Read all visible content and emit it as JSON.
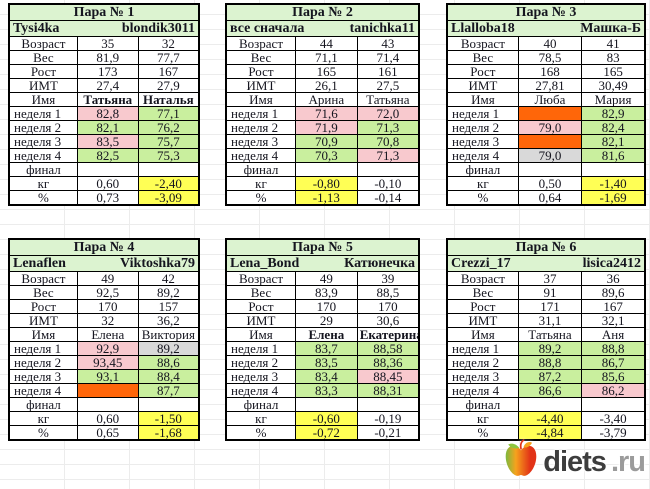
{
  "row_labels": [
    "Возраст",
    "Вес",
    "Рост",
    "ИМТ",
    "Имя",
    "неделя 1",
    "неделя 2",
    "неделя 3",
    "неделя 4",
    "финал",
    "кг",
    "%"
  ],
  "colors": {
    "white": "#ffffff",
    "pink": "#f8c9ce",
    "green": "#c9ef9e",
    "orange": "#ff6609",
    "gray": "#d9d9d9",
    "yellow": "#ffff55",
    "header": "#dcf3d0"
  },
  "pairs": [
    {
      "title": "Пара № 1",
      "user_left": "Tysi4ka",
      "user_right": "blondik3011",
      "values": [
        [
          {
            "v": "35"
          },
          {
            "v": "32"
          }
        ],
        [
          {
            "v": "81,9"
          },
          {
            "v": "77,7"
          }
        ],
        [
          {
            "v": "173"
          },
          {
            "v": "167"
          }
        ],
        [
          {
            "v": "27,4"
          },
          {
            "v": "27,9"
          }
        ],
        [
          {
            "v": "Татьяна",
            "bold": true
          },
          {
            "v": "Наталья",
            "bold": true
          }
        ],
        [
          {
            "v": "82,8",
            "bg": "pink"
          },
          {
            "v": "77,1",
            "bg": "green"
          }
        ],
        [
          {
            "v": "82,1",
            "bg": "green"
          },
          {
            "v": "76,2",
            "bg": "green"
          }
        ],
        [
          {
            "v": "83,5",
            "bg": "pink"
          },
          {
            "v": "75,7",
            "bg": "green"
          }
        ],
        [
          {
            "v": "82,5",
            "bg": "green"
          },
          {
            "v": "75,3",
            "bg": "green"
          }
        ],
        [
          {
            "v": ""
          },
          {
            "v": ""
          }
        ],
        [
          {
            "v": "0,60"
          },
          {
            "v": "-2,40",
            "bg": "yellow"
          }
        ],
        [
          {
            "v": "0,73"
          },
          {
            "v": "-3,09",
            "bg": "yellow"
          }
        ]
      ]
    },
    {
      "title": "Пара № 2",
      "user_left": "все сначала",
      "user_right": "tanichka11",
      "values": [
        [
          {
            "v": "44"
          },
          {
            "v": "43"
          }
        ],
        [
          {
            "v": "71,1"
          },
          {
            "v": "71,4"
          }
        ],
        [
          {
            "v": "165"
          },
          {
            "v": "161"
          }
        ],
        [
          {
            "v": "26,1"
          },
          {
            "v": "27,5"
          }
        ],
        [
          {
            "v": "Арина"
          },
          {
            "v": "Татьяна"
          }
        ],
        [
          {
            "v": "71,6",
            "bg": "pink"
          },
          {
            "v": "72,0",
            "bg": "pink"
          }
        ],
        [
          {
            "v": "71,9",
            "bg": "pink"
          },
          {
            "v": "71,3",
            "bg": "green"
          }
        ],
        [
          {
            "v": "70,9",
            "bg": "green"
          },
          {
            "v": "70,8",
            "bg": "green"
          }
        ],
        [
          {
            "v": "70,3",
            "bg": "green"
          },
          {
            "v": "71,3",
            "bg": "pink"
          }
        ],
        [
          {
            "v": ""
          },
          {
            "v": ""
          }
        ],
        [
          {
            "v": "-0,80",
            "bg": "yellow"
          },
          {
            "v": "-0,10"
          }
        ],
        [
          {
            "v": "-1,13",
            "bg": "yellow"
          },
          {
            "v": "-0,14"
          }
        ]
      ]
    },
    {
      "title": "Пара № 3",
      "user_left": "Llalloba18",
      "user_right": "Машка-Б",
      "values": [
        [
          {
            "v": "40"
          },
          {
            "v": "41"
          }
        ],
        [
          {
            "v": "78,5"
          },
          {
            "v": "83"
          }
        ],
        [
          {
            "v": "168"
          },
          {
            "v": "165"
          }
        ],
        [
          {
            "v": "27,81"
          },
          {
            "v": "30,49"
          }
        ],
        [
          {
            "v": "Люба"
          },
          {
            "v": "Мария"
          }
        ],
        [
          {
            "v": "",
            "bg": "orange"
          },
          {
            "v": "82,9",
            "bg": "green"
          }
        ],
        [
          {
            "v": "79,0",
            "bg": "pink"
          },
          {
            "v": "82,4",
            "bg": "green"
          }
        ],
        [
          {
            "v": "",
            "bg": "orange"
          },
          {
            "v": "82,1",
            "bg": "green"
          }
        ],
        [
          {
            "v": "79,0",
            "bg": "gray"
          },
          {
            "v": "81,6",
            "bg": "green"
          }
        ],
        [
          {
            "v": ""
          },
          {
            "v": ""
          }
        ],
        [
          {
            "v": "0,50"
          },
          {
            "v": "-1,40",
            "bg": "yellow"
          }
        ],
        [
          {
            "v": "0,64"
          },
          {
            "v": "-1,69",
            "bg": "yellow"
          }
        ]
      ]
    },
    {
      "title": "Пара № 4",
      "user_left": "Lenaflen",
      "user_right": "Viktoshka79",
      "values": [
        [
          {
            "v": "49"
          },
          {
            "v": "42"
          }
        ],
        [
          {
            "v": "92,5"
          },
          {
            "v": "89,2"
          }
        ],
        [
          {
            "v": "170"
          },
          {
            "v": "157"
          }
        ],
        [
          {
            "v": "32"
          },
          {
            "v": "36,2"
          }
        ],
        [
          {
            "v": "Елена"
          },
          {
            "v": "Виктория"
          }
        ],
        [
          {
            "v": "92,9",
            "bg": "pink"
          },
          {
            "v": "89,2",
            "bg": "gray"
          }
        ],
        [
          {
            "v": "93,45",
            "bg": "pink"
          },
          {
            "v": "88,6",
            "bg": "green"
          }
        ],
        [
          {
            "v": "93,1",
            "bg": "green"
          },
          {
            "v": "88,4",
            "bg": "green"
          }
        ],
        [
          {
            "v": "",
            "bg": "orange"
          },
          {
            "v": "87,7",
            "bg": "green"
          }
        ],
        [
          {
            "v": ""
          },
          {
            "v": ""
          }
        ],
        [
          {
            "v": "0,60"
          },
          {
            "v": "-1,50",
            "bg": "yellow"
          }
        ],
        [
          {
            "v": "0,65"
          },
          {
            "v": "-1,68",
            "bg": "yellow"
          }
        ]
      ]
    },
    {
      "title": "Пара № 5",
      "user_left": "Lena_Bond",
      "user_right": "Катюнечка",
      "values": [
        [
          {
            "v": "49"
          },
          {
            "v": "39"
          }
        ],
        [
          {
            "v": "83,9"
          },
          {
            "v": "88,5"
          }
        ],
        [
          {
            "v": "170"
          },
          {
            "v": "170"
          }
        ],
        [
          {
            "v": "29"
          },
          {
            "v": "30,6"
          }
        ],
        [
          {
            "v": "Елена",
            "bold": true
          },
          {
            "v": "Екатерина",
            "bold": true
          }
        ],
        [
          {
            "v": "83,7",
            "bg": "green"
          },
          {
            "v": "88,58",
            "bg": "green"
          }
        ],
        [
          {
            "v": "83,5",
            "bg": "green"
          },
          {
            "v": "88,36",
            "bg": "green"
          }
        ],
        [
          {
            "v": "83,4",
            "bg": "green"
          },
          {
            "v": "88,45",
            "bg": "pink"
          }
        ],
        [
          {
            "v": "83,3",
            "bg": "green"
          },
          {
            "v": "88,31",
            "bg": "green"
          }
        ],
        [
          {
            "v": ""
          },
          {
            "v": ""
          }
        ],
        [
          {
            "v": "-0,60",
            "bg": "yellow"
          },
          {
            "v": "-0,19"
          }
        ],
        [
          {
            "v": "-0,72",
            "bg": "yellow"
          },
          {
            "v": "-0,21"
          }
        ]
      ]
    },
    {
      "title": "Пара № 6",
      "user_left": "Crezzi_17",
      "user_right": "lisica2412",
      "values": [
        [
          {
            "v": "37"
          },
          {
            "v": "36"
          }
        ],
        [
          {
            "v": "91"
          },
          {
            "v": "89,6"
          }
        ],
        [
          {
            "v": "171"
          },
          {
            "v": "167"
          }
        ],
        [
          {
            "v": "31,1"
          },
          {
            "v": "32,1"
          }
        ],
        [
          {
            "v": "Татьяна"
          },
          {
            "v": "Аня"
          }
        ],
        [
          {
            "v": "89,2",
            "bg": "green"
          },
          {
            "v": "88,8",
            "bg": "green"
          }
        ],
        [
          {
            "v": "88,8",
            "bg": "green"
          },
          {
            "v": "86,7",
            "bg": "green"
          }
        ],
        [
          {
            "v": "87,2",
            "bg": "green"
          },
          {
            "v": "85,6",
            "bg": "green"
          }
        ],
        [
          {
            "v": "86,6",
            "bg": "green"
          },
          {
            "v": "86,2",
            "bg": "pink"
          }
        ],
        [
          {
            "v": ""
          },
          {
            "v": ""
          }
        ],
        [
          {
            "v": "-4,40",
            "bg": "yellow"
          },
          {
            "v": "-3,40"
          }
        ],
        [
          {
            "v": "-4,84",
            "bg": "yellow"
          },
          {
            "v": "-3,79"
          }
        ]
      ]
    }
  ],
  "logo": {
    "text": "diets",
    "suffix": ".ru",
    "icon": "apple-icon"
  }
}
